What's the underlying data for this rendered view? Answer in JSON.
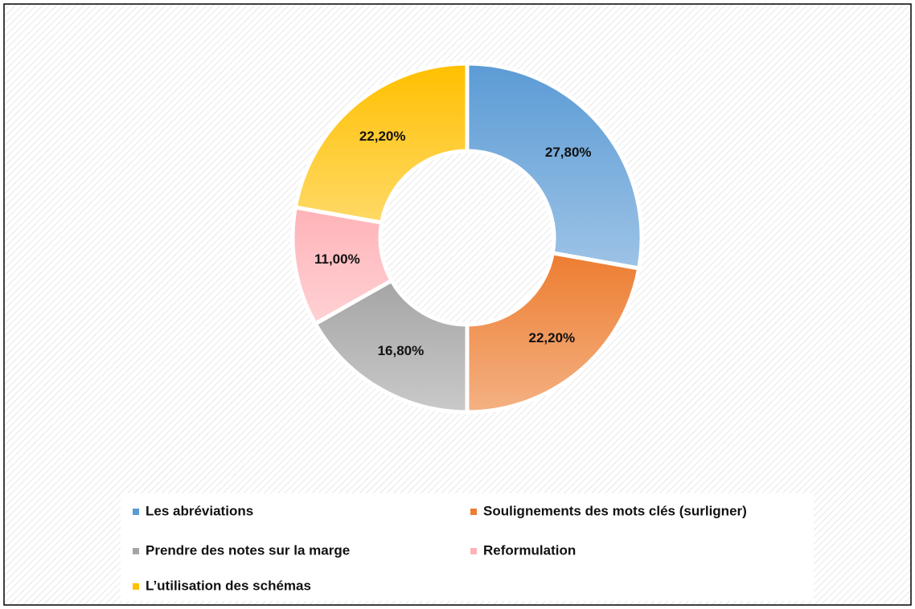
{
  "chart_data": {
    "type": "donut",
    "categories": [
      "Les abréviations",
      "Soulignements des mots clés (surligner)",
      "Prendre des notes sur la marge",
      "Reformulation",
      "L’utilisation des schémas"
    ],
    "values": [
      27.8,
      22.2,
      16.8,
      11.0,
      22.2
    ],
    "value_labels": [
      "27,80%",
      "22,20%",
      "16,80%",
      "11,00%",
      "22,20%"
    ],
    "colors": [
      "#5b9bd5",
      "#ed7d31",
      "#a5a5a5",
      "#ffb3b8",
      "#ffc000"
    ],
    "legend": "bottom"
  }
}
